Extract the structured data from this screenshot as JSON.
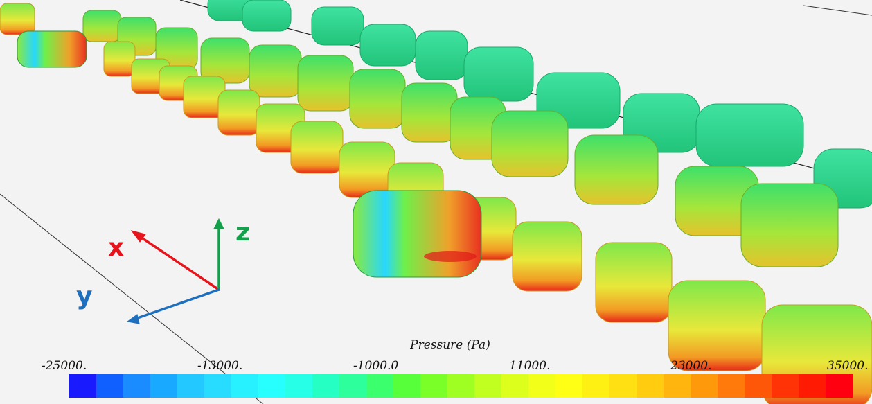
{
  "axes": {
    "x_label": "x",
    "y_label": "y",
    "z_label": "z",
    "x_color": "#e8141c",
    "y_color": "#1f6fbf",
    "z_color": "#13a04a"
  },
  "legend": {
    "title": "Pressure (Pa)",
    "ticks": [
      "-25000.",
      "-13000.",
      "-1000.0",
      "11000.",
      "23000.",
      "35000."
    ],
    "colors": [
      "#1a1aff",
      "#1060ff",
      "#1a8cff",
      "#19aaff",
      "#22c8ff",
      "#27dcff",
      "#27f0ff",
      "#27ffff",
      "#27ffe6",
      "#26ffc4",
      "#2dff9c",
      "#3cff6e",
      "#57ff3a",
      "#7bff28",
      "#a0ff22",
      "#c0ff20",
      "#dcff1c",
      "#f2ff18",
      "#ffff16",
      "#fff014",
      "#ffe012",
      "#ffcc10",
      "#ffb40e",
      "#ff990c",
      "#ff7a0a",
      "#ff5708",
      "#ff3306",
      "#ff1a04",
      "#ff0010"
    ]
  }
}
